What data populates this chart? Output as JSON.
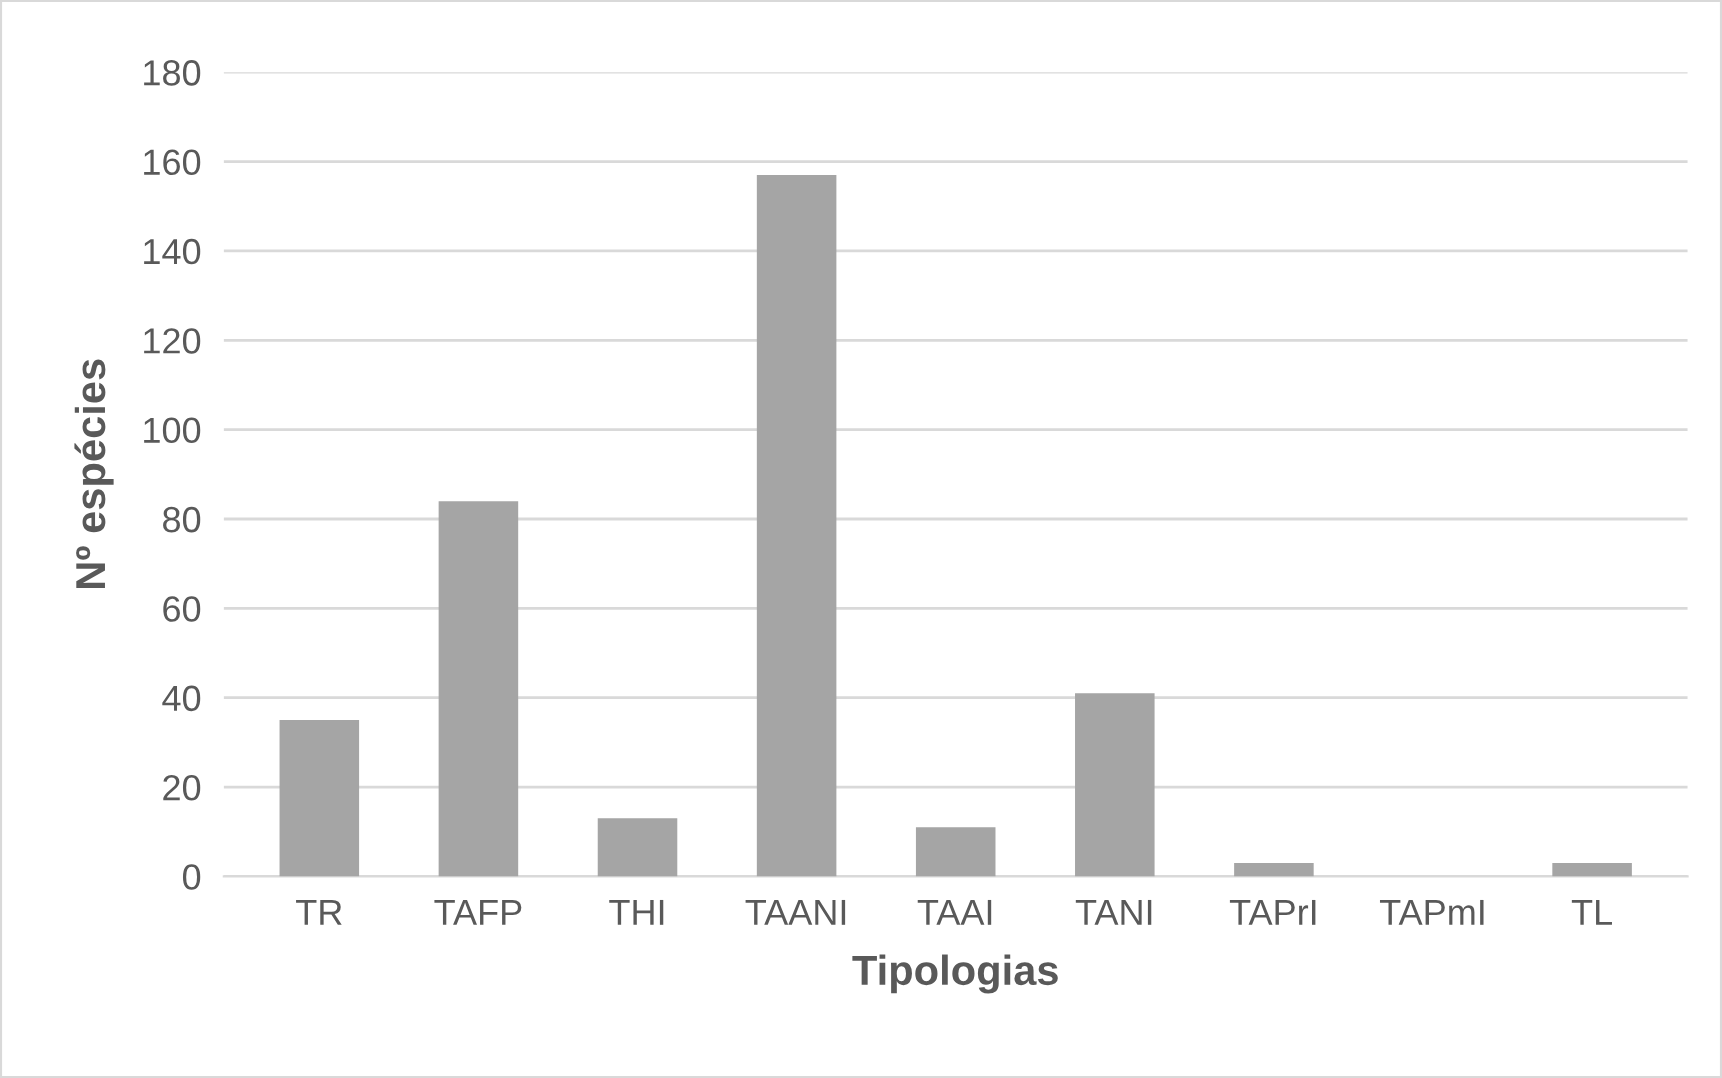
{
  "chart_data": {
    "type": "bar",
    "xlabel": "Tipologias",
    "ylabel": "Nº espécies",
    "categories": [
      "TR",
      "TAFP",
      "THI",
      "TAANI",
      "TAAI",
      "TANI",
      "TAPrI",
      "TAPmI",
      "TL"
    ],
    "values": [
      35,
      84,
      13,
      157,
      11,
      41,
      3,
      0,
      3
    ],
    "color": "#a5a5a5",
    "ylim": [
      0,
      180
    ],
    "yticks": [
      0,
      20,
      40,
      60,
      80,
      100,
      120,
      140,
      160,
      180
    ],
    "grid": "y",
    "legend": false
  }
}
